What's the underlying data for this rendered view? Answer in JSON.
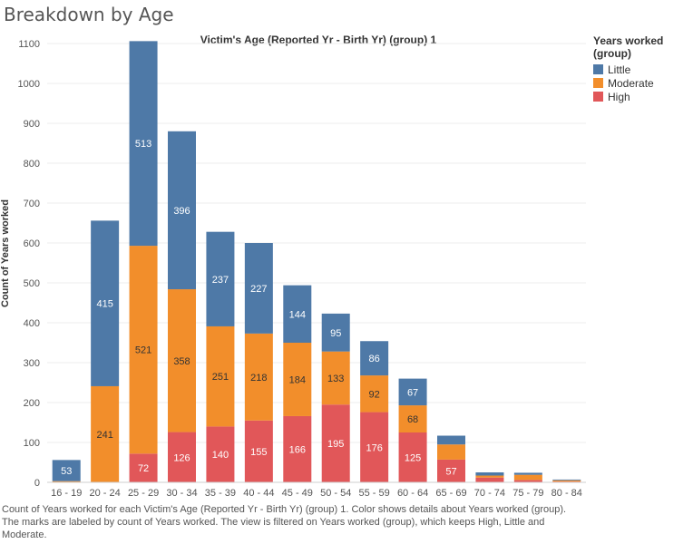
{
  "page_title": "Breakdown by Age",
  "caption": "Count of Years worked for each Victim's Age (Reported Yr - Birth Yr) (group) 1.  Color shows details about Years worked (group).  The marks are labeled by count of Years worked. The view is filtered on Years worked (group), which keeps High, Little and Moderate.",
  "legend": {
    "title": "Years worked (group)",
    "placement": "top-right",
    "items": [
      {
        "label": "Little",
        "color": "#4e79a7"
      },
      {
        "label": "Moderate",
        "color": "#f28e2b"
      },
      {
        "label": "High",
        "color": "#e15759"
      }
    ]
  },
  "chart_data": {
    "type": "bar",
    "stacked": true,
    "title": "Victim's Age (Reported Yr - Birth Yr) (group) 1",
    "xlabel": "",
    "ylabel": "Count of Years worked",
    "ylim": [
      0,
      1100
    ],
    "yticks": [
      0,
      100,
      200,
      300,
      400,
      500,
      600,
      700,
      800,
      900,
      1000,
      1100
    ],
    "grid": true,
    "categories": [
      "16 - 19",
      "20 - 24",
      "25 - 29",
      "30 - 34",
      "35 - 39",
      "40 - 44",
      "45 - 49",
      "50 - 54",
      "55 - 59",
      "60 - 64",
      "65 - 69",
      "70 - 74",
      "75 - 79",
      "80 - 84"
    ],
    "series": [
      {
        "name": "High",
        "color": "#e15759",
        "values": [
          0,
          0,
          72,
          126,
          140,
          155,
          166,
          195,
          176,
          125,
          57,
          12,
          6,
          2
        ],
        "labels": [
          "",
          "",
          "72",
          "126",
          "140",
          "155",
          "166",
          "195",
          "176",
          "125",
          "57",
          "",
          "",
          ""
        ]
      },
      {
        "name": "Moderate",
        "color": "#f28e2b",
        "values": [
          3,
          241,
          521,
          358,
          251,
          218,
          184,
          133,
          92,
          68,
          38,
          5,
          13,
          3
        ],
        "labels": [
          "",
          "241",
          "521",
          "358",
          "251",
          "218",
          "184",
          "133",
          "92",
          "68",
          "",
          "",
          "",
          ""
        ]
      },
      {
        "name": "Little",
        "color": "#4e79a7",
        "values": [
          53,
          415,
          513,
          396,
          237,
          227,
          144,
          95,
          86,
          67,
          22,
          8,
          5,
          2
        ],
        "labels": [
          "53",
          "415",
          "513",
          "396",
          "237",
          "227",
          "144",
          "95",
          "86",
          "67",
          "",
          "",
          "",
          ""
        ]
      }
    ],
    "label_colors": {
      "High": "#ffffff",
      "Moderate": "#333333",
      "Little": "#ffffff"
    }
  }
}
